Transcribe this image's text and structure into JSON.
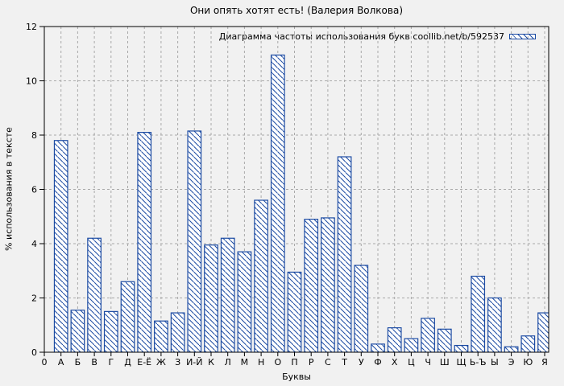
{
  "chart_data": {
    "type": "bar",
    "title": "Они опять хотят есть! (Валерия Волкова)",
    "legend": "Диаграмма частоты использования букв coollib.net/b/592537",
    "legend_position": "top-right-inside",
    "xlabel": "Буквы",
    "ylabel": "% использования в тексте",
    "origin_tick_label": "0",
    "categories": [
      "А",
      "Б",
      "В",
      "Г",
      "Д",
      "Е-Ё",
      "Ж",
      "З",
      "И-Й",
      "К",
      "Л",
      "М",
      "Н",
      "О",
      "П",
      "Р",
      "С",
      "Т",
      "У",
      "Ф",
      "Х",
      "Ц",
      "Ч",
      "Ш",
      "Щ",
      "Ь-Ъ",
      "Ы",
      "Э",
      "Ю",
      "Я"
    ],
    "values": [
      7.8,
      1.55,
      4.2,
      1.5,
      2.6,
      8.1,
      1.15,
      1.45,
      8.15,
      3.95,
      4.2,
      3.7,
      5.6,
      10.95,
      2.95,
      4.9,
      4.95,
      7.2,
      3.2,
      0.3,
      0.9,
      0.5,
      1.25,
      0.85,
      0.25,
      2.8,
      2.0,
      0.2,
      0.6,
      1.45
    ],
    "y_ticks": [
      0,
      2,
      4,
      6,
      8,
      10,
      12
    ],
    "ylim": [
      0,
      12
    ],
    "grid": true,
    "bar_style": "diagonal-hatch",
    "colors": {
      "background": "#f1f1f1",
      "bar_stroke": "#1b4aa2",
      "bar_fill": "#ffffff",
      "grid": "#a9a9a9",
      "frame": "#000000"
    }
  }
}
